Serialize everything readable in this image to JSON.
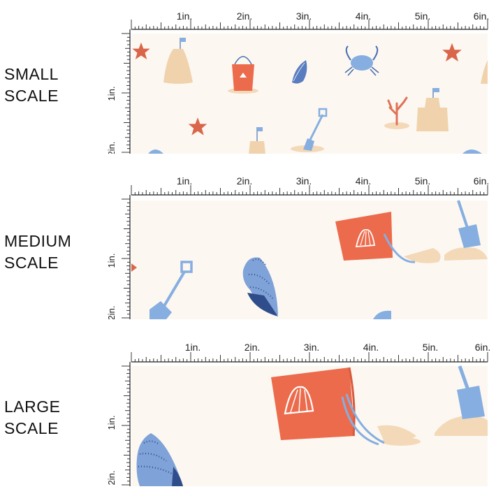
{
  "panels": [
    {
      "label_line1": "SMALL",
      "label_line2": "SCALE"
    },
    {
      "label_line1": "MEDIUM",
      "label_line2": "SCALE"
    },
    {
      "label_line1": "LARGE",
      "label_line2": "SCALE"
    }
  ],
  "ruler": {
    "top_labels": [
      "1in.",
      "2in.",
      "3in.",
      "4in.",
      "5in.",
      "6in."
    ],
    "side_labels": [
      "1in.",
      "2in."
    ]
  },
  "colors": {
    "fabric": "#fcf8f1",
    "sand": "#f3d9b8",
    "coral_red": "#ec6b4c",
    "sky_blue": "#86aee0",
    "navy": "#2f4d8a",
    "ruler_ink": "#222222"
  },
  "motifs": [
    "starfish-icon",
    "sandcastle-icon",
    "sand-bucket-icon",
    "seashell-icon",
    "crab-icon",
    "coral-icon",
    "shovel-icon"
  ]
}
